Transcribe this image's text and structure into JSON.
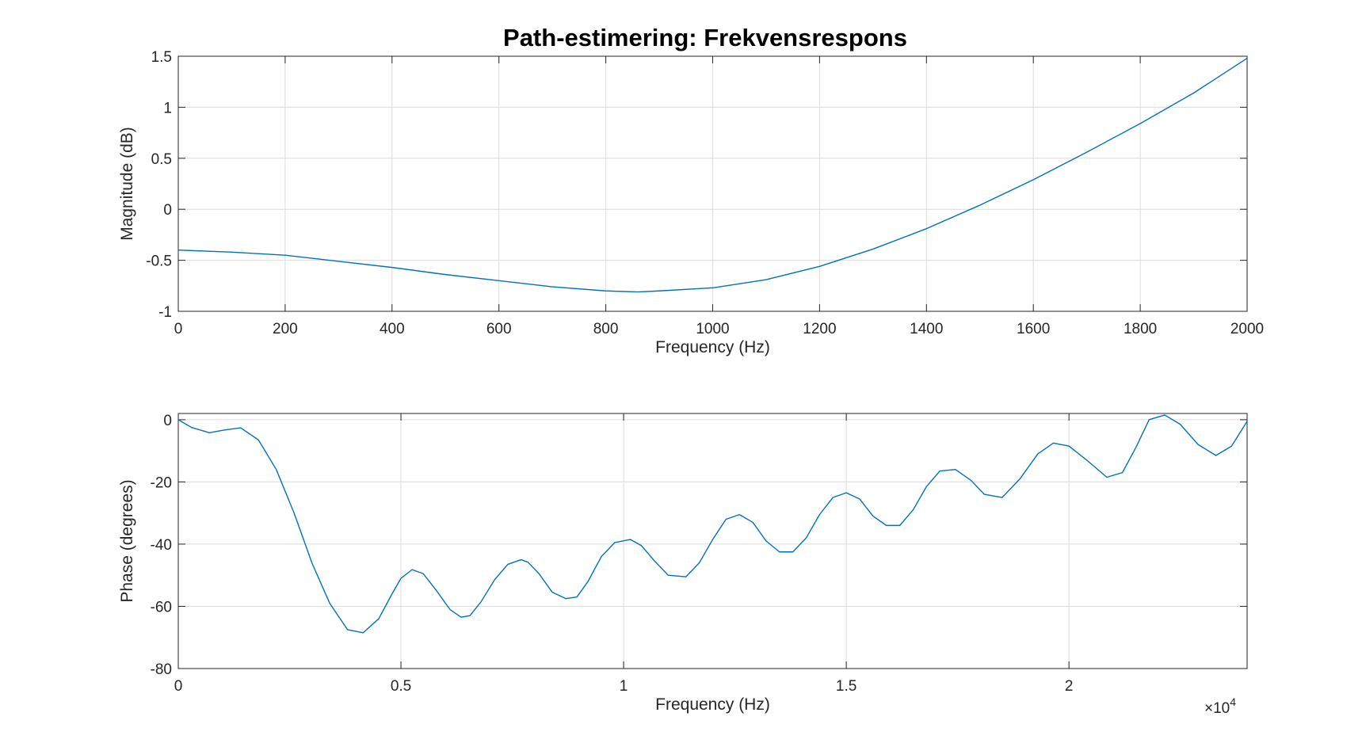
{
  "figure": {
    "title": "Path-estimering: Frekvensrespons",
    "line_color": "#0072BD",
    "grid_color": "#dcdcdc",
    "axes_color": "#262626"
  },
  "chart_data": [
    {
      "type": "line",
      "title": "Path-estimering: Frekvensrespons",
      "xlabel": "Frequency (Hz)",
      "ylabel": "Magnitude (dB)",
      "xlim": [
        0,
        2000
      ],
      "ylim": [
        -1,
        1.5
      ],
      "xticks": [
        0,
        200,
        400,
        600,
        800,
        1000,
        1200,
        1400,
        1600,
        1800,
        2000
      ],
      "xtick_labels": [
        "0",
        "200",
        "400",
        "600",
        "800",
        "1000",
        "1200",
        "1400",
        "1600",
        "1800",
        "2000"
      ],
      "yticks": [
        -1,
        -0.5,
        0,
        0.5,
        1,
        1.5
      ],
      "ytick_labels": [
        "-1",
        "-0.5",
        "0",
        "0.5",
        "1",
        "1.5"
      ],
      "grid": true,
      "series": [
        {
          "color": "#0072BD",
          "x": [
            0,
            100,
            200,
            300,
            400,
            500,
            600,
            700,
            800,
            860,
            900,
            1000,
            1100,
            1200,
            1300,
            1400,
            1500,
            1600,
            1700,
            1800,
            1900,
            2000
          ],
          "y": [
            -0.4,
            -0.42,
            -0.45,
            -0.51,
            -0.57,
            -0.64,
            -0.7,
            -0.76,
            -0.8,
            -0.81,
            -0.8,
            -0.77,
            -0.69,
            -0.56,
            -0.39,
            -0.19,
            0.04,
            0.29,
            0.56,
            0.84,
            1.14,
            1.48
          ]
        }
      ]
    },
    {
      "type": "line",
      "title": "",
      "xlabel": "Frequency (Hz)",
      "ylabel": "Phase (degrees)",
      "xlim": [
        0,
        24000
      ],
      "ylim": [
        -80,
        2
      ],
      "x_exponent_label": "×10",
      "x_exponent_power": "4",
      "xticks": [
        0,
        5000,
        10000,
        15000,
        20000
      ],
      "xtick_labels": [
        "0",
        "0.5",
        "1",
        "1.5",
        "2"
      ],
      "yticks": [
        -80,
        -60,
        -40,
        -20,
        0
      ],
      "ytick_labels": [
        "-80",
        "-60",
        "-40",
        "-20",
        "0"
      ],
      "grid": true,
      "series": [
        {
          "color": "#0072BD",
          "x": [
            0,
            300,
            700,
            1000,
            1400,
            1800,
            2200,
            2600,
            3000,
            3400,
            3800,
            4150,
            4500,
            4800,
            5000,
            5250,
            5500,
            5800,
            6100,
            6350,
            6550,
            6800,
            7100,
            7400,
            7700,
            7850,
            8100,
            8400,
            8700,
            8950,
            9200,
            9500,
            9800,
            10150,
            10400,
            10700,
            11000,
            11400,
            11700,
            12000,
            12300,
            12600,
            12900,
            13200,
            13500,
            13800,
            14100,
            14400,
            14700,
            15000,
            15300,
            15600,
            15900,
            16200,
            16500,
            16800,
            17100,
            17450,
            17800,
            18100,
            18500,
            18900,
            19300,
            19650,
            20000,
            20400,
            20850,
            21200,
            21500,
            21800,
            22150,
            22500,
            22900,
            23300,
            23650,
            24000
          ],
          "y": [
            0,
            -2.5,
            -4.2,
            -3.4,
            -2.6,
            -6.5,
            -16,
            -30,
            -46,
            -59,
            -67.5,
            -68.5,
            -64,
            -56,
            -51,
            -48.2,
            -49.5,
            -55,
            -61,
            -63.5,
            -63,
            -58.5,
            -51.5,
            -46.5,
            -45,
            -45.8,
            -49.5,
            -55.5,
            -57.5,
            -57,
            -52,
            -44,
            -39.5,
            -38.5,
            -40.5,
            -45.5,
            -50,
            -50.5,
            -46,
            -38.5,
            -32,
            -30.5,
            -33,
            -39,
            -42.5,
            -42.5,
            -38,
            -30.5,
            -25,
            -23.5,
            -25.5,
            -31,
            -34,
            -34,
            -29,
            -21.5,
            -16.5,
            -16,
            -19.5,
            -24,
            -25,
            -19,
            -11,
            -7.5,
            -8.5,
            -13,
            -18.5,
            -17,
            -9,
            0,
            1.5,
            -1.5,
            -8,
            -11.5,
            -8.5,
            -0.5
          ]
        }
      ]
    }
  ]
}
